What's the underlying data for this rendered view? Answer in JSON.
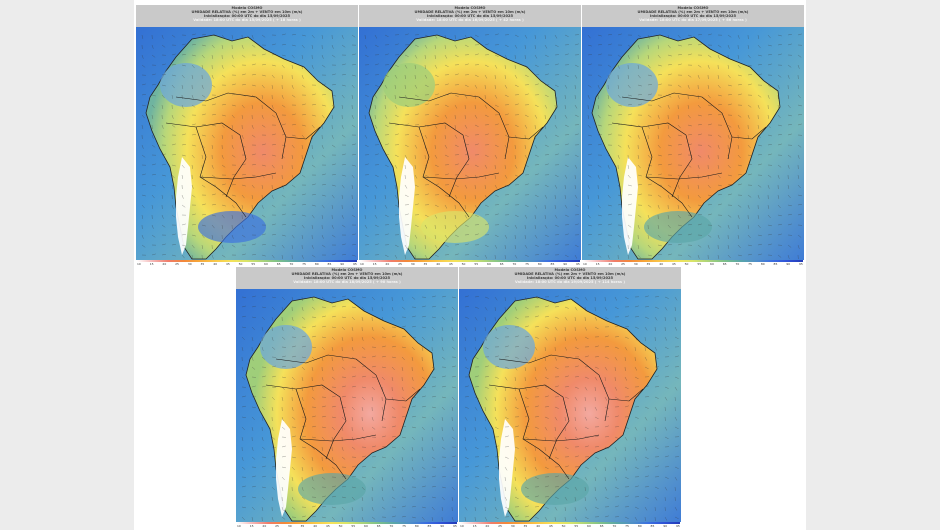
{
  "panels": [
    {
      "title": "Modelo COSMO",
      "subtitle": "UMIDADE RELATIVA (%) em 2m + VENTO em 10m (m/s)",
      "init": "Inicialização: 00:00 UTC do dia 15/09/2025",
      "valid": "Validade: 18:00 UTC do dia 15/09/2025 ( + 18 horas )"
    },
    {
      "title": "Modelo COSMO",
      "subtitle": "UMIDADE RELATIVA (%) em 2m + VENTO em 10m (m/s)",
      "init": "Inicialização: 00:00 UTC do dia 15/09/2025",
      "valid": "Validade: 18:00 UTC do dia 16/09/2025 ( + 42 horas )"
    },
    {
      "title": "Modelo COSMO",
      "subtitle": "UMIDADE RELATIVA (%) em 2m + VENTO em 10m (m/s)",
      "init": "Inicialização: 00:00 UTC do dia 15/09/2025",
      "valid": "Validade: 18:00 UTC do dia 17/09/2025 ( + 66 horas )"
    },
    {
      "title": "Modelo COSMO",
      "subtitle": "UMIDADE RELATIVA (%) em 2m + VENTO em 10m (m/s)",
      "init": "Inicialização: 00:00 UTC do dia 15/09/2025",
      "valid": "Validade: 18:00 UTC do dia 18/09/2025 ( + 90 horas )"
    },
    {
      "title": "Modelo COSMO",
      "subtitle": "UMIDADE RELATIVA (%) em 2m + VENTO em 10m (m/s)",
      "init": "Inicialização: 00:00 UTC do dia 15/09/2025",
      "valid": "Validade: 18:00 UTC do dia 19/09/2025 ( + 114 horas )"
    }
  ],
  "scale": {
    "ticks": [
      "10",
      "15",
      "20",
      "25",
      "30",
      "35",
      "40",
      "45",
      "50",
      "55",
      "60",
      "65",
      "70",
      "75",
      "80",
      "85",
      "90",
      "95"
    ],
    "colors": [
      "#ffffff",
      "#f4b6b6",
      "#f07d6a",
      "#f2883a",
      "#f7a93a",
      "#f8c84a",
      "#f5e25a",
      "#d8e46a",
      "#a9d37a",
      "#7cc08a",
      "#5aa6a8",
      "#4f8fc8",
      "#3b6fe0",
      "#2f52d6",
      "#233bb8"
    ]
  },
  "colors": {
    "ocean": "#3f8fd6",
    "ocean_deep": "#2f5fd0",
    "dry_red": "#f08a6a",
    "dry_orange": "#f39a3e",
    "mid_yellow": "#f5e15a",
    "moist_green": "#9fce7a",
    "andes_white": "#ffffff",
    "header_bg": "#c9c9c9"
  }
}
